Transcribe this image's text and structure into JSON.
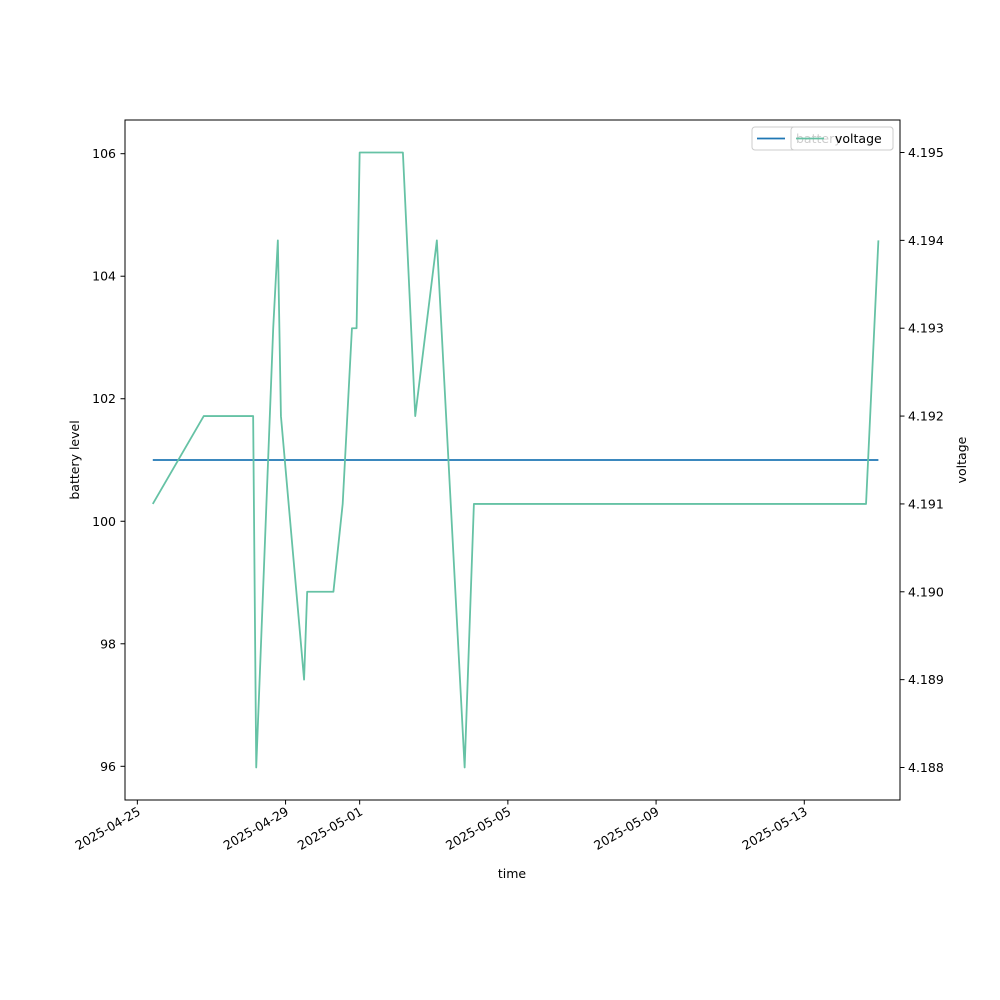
{
  "chart_data": {
    "type": "line",
    "xlabel": "time",
    "ylabel_left": "battery level",
    "ylabel_right": "voltage",
    "x_ticks": [
      "2025-04-25",
      "2025-04-29",
      "2025-05-01",
      "2025-05-05",
      "2025-05-09",
      "2025-05-13"
    ],
    "x_range": [
      "2025-04-24T16:00",
      "2025-05-15T14:00"
    ],
    "left_axis": {
      "range": [
        95.45,
        106.55
      ],
      "ticks": [
        96,
        98,
        100,
        102,
        104,
        106
      ]
    },
    "right_axis": {
      "range": [
        4.18763,
        4.19537
      ],
      "ticks": [
        "4.188",
        "4.189",
        "4.190",
        "4.191",
        "4.192",
        "4.193",
        "4.194",
        "4.195"
      ]
    },
    "series": [
      {
        "name": "battery",
        "axis": "left",
        "color": "#1f77b4",
        "points": [
          {
            "x": "2025-04-25T10:00",
            "y": 101
          },
          {
            "x": "2025-05-15T00:00",
            "y": 101
          }
        ]
      },
      {
        "name": "voltage",
        "axis": "right",
        "color": "#66c2a5",
        "points": [
          {
            "x": "2025-04-25T10:00",
            "y": 4.191
          },
          {
            "x": "2025-04-26T19:00",
            "y": 4.192
          },
          {
            "x": "2025-04-28T03:00",
            "y": 4.192
          },
          {
            "x": "2025-04-28T05:00",
            "y": 4.188
          },
          {
            "x": "2025-04-28T16:00",
            "y": 4.193
          },
          {
            "x": "2025-04-28T19:00",
            "y": 4.194
          },
          {
            "x": "2025-04-28T21:00",
            "y": 4.192
          },
          {
            "x": "2025-04-29T12:00",
            "y": 4.189
          },
          {
            "x": "2025-04-29T14:00",
            "y": 4.19
          },
          {
            "x": "2025-04-30T07:00",
            "y": 4.19
          },
          {
            "x": "2025-04-30T13:00",
            "y": 4.191
          },
          {
            "x": "2025-04-30T19:00",
            "y": 4.193
          },
          {
            "x": "2025-04-30T22:00",
            "y": 4.193
          },
          {
            "x": "2025-05-01T00:00",
            "y": 4.195
          },
          {
            "x": "2025-05-02T04:00",
            "y": 4.195
          },
          {
            "x": "2025-05-02T12:00",
            "y": 4.192
          },
          {
            "x": "2025-05-03T02:00",
            "y": 4.194
          },
          {
            "x": "2025-05-03T20:00",
            "y": 4.188
          },
          {
            "x": "2025-05-04T02:00",
            "y": 4.191
          },
          {
            "x": "2025-05-14T16:00",
            "y": 4.191
          },
          {
            "x": "2025-05-15T00:00",
            "y": 4.194
          }
        ]
      }
    ],
    "legend_entries": [
      "battery",
      "voltage"
    ],
    "legend_placement": "top-right",
    "grid": false
  }
}
